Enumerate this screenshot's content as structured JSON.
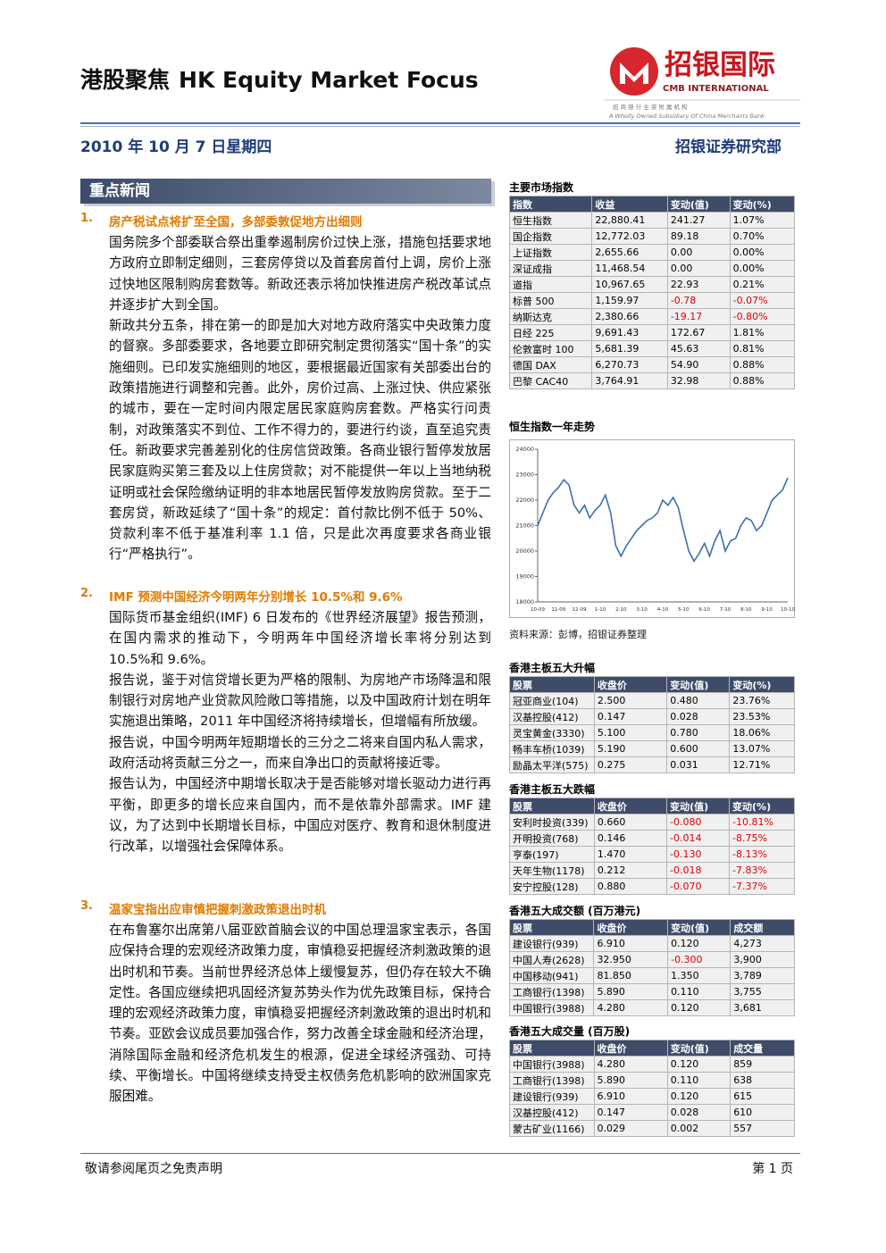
{
  "header": {
    "title_cn": "港股聚焦",
    "title_en": "HK Equity Market Focus",
    "logo_cn": "招银国际",
    "logo_en": "CMB INTERNATIONAL",
    "logo_sub_cn": "招 商 银 行 全 资 附 属 机 构",
    "logo_sub_en": "A Wholly Owned Subsidiary Of China Merchants Bank",
    "date": "2010 年 10 月 7 日星期四",
    "dept": "招银证券研究部"
  },
  "news": {
    "section_title": "重点新闻",
    "items": [
      {
        "number": "1.",
        "title": "房产税试点将扩至全国，多部委敦促地方出细则",
        "paragraphs": [
          "国务院多个部委联合祭出重拳遏制房价过快上涨，措施包括要求地方政府立即制定细则，三套房停贷以及首套房首付上调，房价上涨过快地区限制购房套数等。新政还表示将加快推进房产税改革试点并逐步扩大到全国。",
          "新政共分五条，排在第一的即是加大对地方政府落实中央政策力度的督察。多部委要求，各地要立即研究制定贯彻落实“国十条”的实施细则。已印发实施细则的地区，要根据最近国家有关部委出台的政策措施进行调整和完善。此外，房价过高、上涨过快、供应紧张的城市，要在一定时间内限定居民家庭购房套数。严格实行问责制，对政策落实不到位、工作不得力的，要进行约谈，直至追究责任。新政要求完善差别化的住房信贷政策。各商业银行暂停发放居民家庭购买第三套及以上住房贷款；对不能提供一年以上当地纳税证明或社会保险缴纳证明的非本地居民暂停发放购房贷款。至于二套房贷，新政延续了“国十条”的规定：首付款比例不低于 50%、贷款利率不低于基准利率 1.1 倍，只是此次再度要求各商业银行“严格执行”。"
        ]
      },
      {
        "number": "2.",
        "title": "IMF 预测中国经济今明两年分别增长 10.5%和 9.6%",
        "paragraphs": [
          "国际货币基金组织(IMF) 6 日发布的《世界经济展望》报告预测，在国内需求的推动下，今明两年中国经济增长率将分别达到 10.5%和 9.6%。",
          "报告说，鉴于对信贷增长更为严格的限制、为房地产市场降温和限制银行对房地产业贷款风险敞口等措施，以及中国政府计划在明年实施退出策略，2011 年中国经济将持续增长，但增幅有所放缓。",
          "报告说，中国今明两年短期增长的三分之二将来自国内私人需求，政府活动将贡献三分之一，而来自净出口的贡献将接近零。",
          "报告认为，中国经济中期增长取决于是否能够对增长驱动力进行再平衡，即更多的增长应来自国内，而不是依靠外部需求。IMF 建议，为了达到中长期增长目标，中国应对医疗、教育和退休制度进行改革，以增强社会保障体系。"
        ]
      },
      {
        "number": "3.",
        "title": "温家宝指出应审慎把握刺激政策退出时机",
        "paragraphs": [
          "在布鲁塞尔出席第八届亚欧首脑会议的中国总理温家宝表示，各国应保持合理的宏观经济政策力度，审慎稳妥把握经济刺激政策的退出时机和节奏。当前世界经济总体上缓慢复苏，但仍存在较大不确定性。各国应继续把巩固经济复苏势头作为优先政策目标，保持合理的宏观经济政策力度，审慎稳妥把握经济刺激政策的退出时机和节奏。亚欧会议成员要加强合作，努力改善全球金融和经济治理，消除国际金融和经济危机发生的根源，促进全球经济强劲、可持续、平衡增长。中国将继续支持受主权债务危机影响的欧洲国家克服困难。"
        ]
      }
    ]
  },
  "tables": [
    {
      "title": "主要市场指数",
      "header": [
        "指数",
        "收益",
        "变动(值)",
        "变动(%)"
      ],
      "rows": [
        [
          "恒生指数",
          "22,880.41",
          "241.27",
          "1.07%"
        ],
        [
          "国企指数",
          "12,772.03",
          "89.18",
          "0.70%"
        ],
        [
          "上证指数",
          "2,655.66",
          "0.00",
          "0.00%"
        ],
        [
          "深证成指",
          "11,468.54",
          "0.00",
          "0.00%"
        ],
        [
          "道指",
          "10,967.65",
          "22.93",
          "0.21%"
        ],
        [
          "标普 500",
          "1,159.97",
          "-0.78",
          "-0.07%"
        ],
        [
          "纳斯达克",
          "2,380.66",
          "-19.17",
          "-0.80%"
        ],
        [
          "日经 225",
          "9,691.43",
          "172.67",
          "1.81%"
        ],
        [
          "伦敦富时 100",
          "5,681.39",
          "45.63",
          "0.81%"
        ],
        [
          "德国 DAX",
          "6,270.73",
          "54.90",
          "0.88%"
        ],
        [
          "巴黎 CAC40",
          "3,764.91",
          "32.98",
          "0.88%"
        ]
      ]
    },
    {
      "title": "香港主板五大升幅",
      "header": [
        "股票",
        "收盘价",
        "变动(值)",
        "变动(%)"
      ],
      "rows": [
        [
          "冠亚商业(104)",
          "2.500",
          "0.480",
          "23.76%"
        ],
        [
          "汉基控股(412)",
          "0.147",
          "0.028",
          "23.53%"
        ],
        [
          "灵宝黄金(3330)",
          "5.100",
          "0.780",
          "18.06%"
        ],
        [
          "畅丰车桥(1039)",
          "5.190",
          "0.600",
          "13.07%"
        ],
        [
          "励晶太平洋(575)",
          "0.275",
          "0.031",
          "12.71%"
        ]
      ]
    },
    {
      "title": "香港主板五大跌幅",
      "header": [
        "股票",
        "收盘价",
        "变动(值)",
        "变动(%)"
      ],
      "rows": [
        [
          "安利时投资(339)",
          "0.660",
          "-0.080",
          "-10.81%"
        ],
        [
          "开明投资(768)",
          "0.146",
          "-0.014",
          "-8.75%"
        ],
        [
          "亨泰(197)",
          "1.470",
          "-0.130",
          "-8.13%"
        ],
        [
          "天年生物(1178)",
          "0.212",
          "-0.018",
          "-7.83%"
        ],
        [
          "安宁控股(128)",
          "0.880",
          "-0.070",
          "-7.37%"
        ]
      ]
    },
    {
      "title": "香港五大成交额 (百万港元)",
      "header": [
        "股票",
        "收盘价",
        "变动(值)",
        "成交额"
      ],
      "rows": [
        [
          "建设银行(939)",
          "6.910",
          "0.120",
          "4,273"
        ],
        [
          "中国人寿(2628)",
          "32.950",
          "-0.300",
          "3,900"
        ],
        [
          "中国移动(941)",
          "81.850",
          "1.350",
          "3,789"
        ],
        [
          "工商银行(1398)",
          "5.890",
          "0.110",
          "3,755"
        ],
        [
          "中国银行(3988)",
          "4.280",
          "0.120",
          "3,681"
        ]
      ]
    },
    {
      "title": "香港五大成交量 (百万股)",
      "header": [
        "股票",
        "收盘价",
        "变动(值)",
        "成交量"
      ],
      "rows": [
        [
          "中国银行(3988)",
          "4.280",
          "0.120",
          "859"
        ],
        [
          "工商银行(1398)",
          "5.890",
          "0.110",
          "638"
        ],
        [
          "建设银行(939)",
          "6.910",
          "0.120",
          "615"
        ],
        [
          "汉基控股(412)",
          "0.147",
          "0.028",
          "610"
        ],
        [
          "蒙古矿业(1166)",
          "0.029",
          "0.002",
          "557"
        ]
      ]
    }
  ],
  "hsi_chart": {
    "type": "line",
    "title": "恒生指数一年走势",
    "source": "资料来源：彭博，招银证券整理",
    "color": "#3d6fb0",
    "categories": [
      "10-09",
      null,
      null,
      null,
      "11-09",
      null,
      null,
      null,
      "12-09",
      null,
      null,
      null,
      "1-10",
      null,
      null,
      null,
      "2-10",
      null,
      null,
      null,
      "3-10",
      null,
      null,
      null,
      "4-10",
      null,
      null,
      null,
      "5-10",
      null,
      null,
      null,
      "6-10",
      null,
      null,
      null,
      "7-10",
      null,
      null,
      null,
      "8-10",
      null,
      null,
      null,
      "9-10",
      null,
      null,
      null,
      "10-10"
    ],
    "values": [
      21000,
      21500,
      22000,
      22300,
      22500,
      22800,
      22600,
      21800,
      21500,
      21800,
      21300,
      21600,
      21800,
      22200,
      21500,
      20200,
      19800,
      20200,
      20500,
      20800,
      21000,
      21200,
      21300,
      21500,
      22000,
      21800,
      22100,
      21700,
      20800,
      20000,
      19600,
      19900,
      20300,
      19800,
      20400,
      20800,
      20000,
      20400,
      20500,
      21000,
      21300,
      21200,
      20800,
      21000,
      21500,
      22000,
      22200,
      22400,
      22880
    ],
    "ylim": [
      18000,
      24000
    ],
    "yticks": [
      18000,
      19000,
      20000,
      21000,
      22000,
      23000,
      24000
    ]
  },
  "footer": {
    "disclaimer": "敬请参阅尾页之免责声明",
    "page": "第 1 页"
  }
}
